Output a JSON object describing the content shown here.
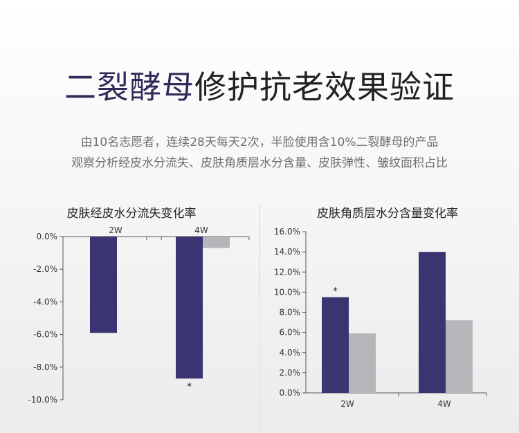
{
  "header": {
    "title_part1": "二裂酵母",
    "title_part2": "修护抗老效果验证",
    "subtitle_line1": "由10名志愿者，连续28天每天2次，半脸使用含10%二裂酵母的产品",
    "subtitle_line2": "观察分析经皮水分流失、皮肤角质层水分含量、皮肤弹性、皱纹面积占比"
  },
  "colors": {
    "accent": "#3a3570",
    "gray_bar": "#b6b6ba",
    "axis": "#555555"
  },
  "chart_data": [
    {
      "type": "bar",
      "title": "皮肤经皮水分流失变化率",
      "categories": [
        "2W",
        "4W"
      ],
      "series": [
        {
          "values": [
            -5.9,
            -8.7
          ],
          "color": "#3a3570"
        },
        {
          "values": [
            null,
            -0.7
          ],
          "color": "#b6b6ba"
        }
      ],
      "ylim": [
        -10,
        0
      ],
      "yticks": [
        "0.0%",
        "-2.0%",
        "-4.0%",
        "-6.0%",
        "-8.0%",
        "-10.0%"
      ],
      "significance": [
        "",
        "*"
      ],
      "xlabel": "",
      "ylabel": ""
    },
    {
      "type": "bar",
      "title": "皮肤角质层水分含量变化率",
      "categories": [
        "2W",
        "4W"
      ],
      "series": [
        {
          "values": [
            9.5,
            14.0
          ],
          "color": "#3a3570"
        },
        {
          "values": [
            5.9,
            7.2
          ],
          "color": "#b6b6ba"
        }
      ],
      "ylim": [
        0,
        16
      ],
      "yticks": [
        "0.0%",
        "2.0%",
        "4.0%",
        "6.0%",
        "8.0%",
        "10.0%",
        "12.0%",
        "14.0%",
        "16.0%"
      ],
      "significance": [
        "*",
        ""
      ],
      "xlabel": "",
      "ylabel": ""
    }
  ]
}
